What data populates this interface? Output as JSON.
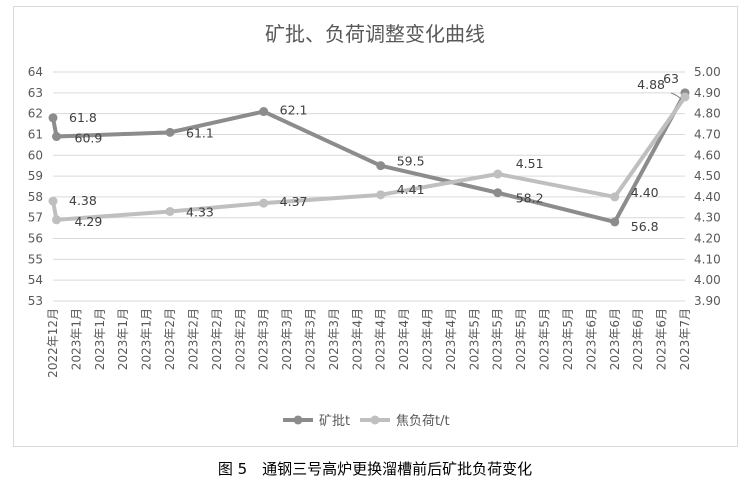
{
  "caption": "图 5　通钢三号高炉更换溜槽前后矿批负荷变化",
  "chart_data": {
    "type": "line",
    "title": "矿批、负荷调整变化曲线",
    "categories": [
      "2022年12月",
      "2023年1月",
      "2023年1月",
      "2023年1月",
      "2023年1月",
      "2023年2月",
      "2023年2月",
      "2023年2月",
      "2023年2月",
      "2023年3月",
      "2023年3月",
      "2023年3月",
      "2023年3月",
      "2023年4月",
      "2023年4月",
      "2023年4月",
      "2023年4月",
      "2023年4月",
      "2023年5月",
      "2023年5月",
      "2023年5月",
      "2023年5月",
      "2023年5月",
      "2023年6月",
      "2023年6月",
      "2023年6月",
      "2023年6月",
      "2023年7月"
    ],
    "y_left": {
      "min": 53,
      "max": 64,
      "step": 1,
      "tick_labels": [
        "53",
        "54",
        "55",
        "56",
        "57",
        "58",
        "59",
        "60",
        "61",
        "62",
        "63",
        "64"
      ]
    },
    "y_right": {
      "min": 3.9,
      "max": 5.0,
      "step": 0.1,
      "tick_labels": [
        "3.90",
        "4.00",
        "4.10",
        "4.20",
        "4.30",
        "4.40",
        "4.50",
        "4.60",
        "4.70",
        "4.80",
        "4.90",
        "5.00"
      ]
    },
    "grid": true,
    "legend_position": "bottom",
    "series": [
      {
        "name": "矿批t",
        "axis": "left",
        "color": "#8c8c8c",
        "points": [
          {
            "x": 0,
            "y": 61.8,
            "label": "61.8"
          },
          {
            "x": 0.15,
            "y": 60.9,
            "label": "60.9"
          },
          {
            "x": 5,
            "y": 61.1,
            "label": "61.1"
          },
          {
            "x": 9,
            "y": 62.1,
            "label": "62.1"
          },
          {
            "x": 14,
            "y": 59.5,
            "label": "59.5"
          },
          {
            "x": 19,
            "y": 58.2,
            "label": "58.2"
          },
          {
            "x": 24,
            "y": 56.8,
            "label": "56.8"
          },
          {
            "x": 27,
            "y": 63.0,
            "label": "63"
          }
        ]
      },
      {
        "name": "焦负荷t/t",
        "axis": "right",
        "color": "#bfbfbf",
        "points": [
          {
            "x": 0,
            "y": 4.38,
            "label": "4.38"
          },
          {
            "x": 0.15,
            "y": 4.29,
            "label": "4.29"
          },
          {
            "x": 5,
            "y": 4.33,
            "label": "4.33"
          },
          {
            "x": 9,
            "y": 4.37,
            "label": "4.37"
          },
          {
            "x": 14,
            "y": 4.41,
            "label": "4.41"
          },
          {
            "x": 19,
            "y": 4.51,
            "label": "4.51"
          },
          {
            "x": 24,
            "y": 4.4,
            "label": "4.40"
          },
          {
            "x": 27,
            "y": 4.88,
            "label": "4.88"
          }
        ]
      }
    ]
  }
}
